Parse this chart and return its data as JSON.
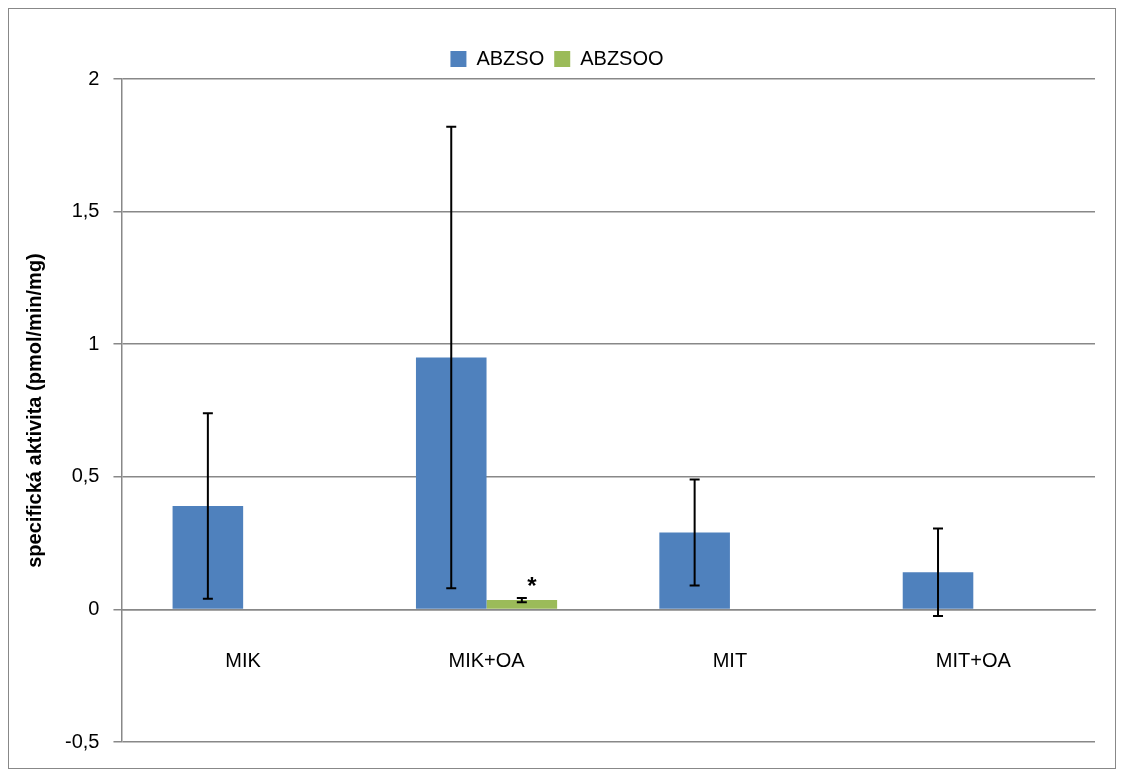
{
  "chart_data": {
    "type": "bar",
    "ylabel": "specifická aktivita (pmol/min/mg)",
    "categories": [
      "MIK",
      "MIK+OA",
      "MIT",
      "MIT+OA"
    ],
    "series": [
      {
        "name": "ABZSO",
        "color": "#4f81bd",
        "values": [
          0.39,
          0.95,
          0.29,
          0.14
        ],
        "errors": [
          0.35,
          0.87,
          0.2,
          0.165
        ]
      },
      {
        "name": "ABZSOO",
        "color": "#9bbb59",
        "values": [
          null,
          0.035,
          null,
          null
        ],
        "errors": [
          null,
          0.008,
          null,
          null
        ]
      }
    ],
    "ylim": [
      -0.5,
      2
    ],
    "yticks": [
      {
        "value": -0.5,
        "label": "-0,5"
      },
      0,
      {
        "value": 0.5,
        "label": "0,5"
      },
      1,
      {
        "value": 1.5,
        "label": "1,5"
      },
      2
    ],
    "annotations": [
      {
        "text": "*",
        "x": "MIK+OA",
        "y": 0.06
      }
    ],
    "grid": "y",
    "legend": "top"
  }
}
